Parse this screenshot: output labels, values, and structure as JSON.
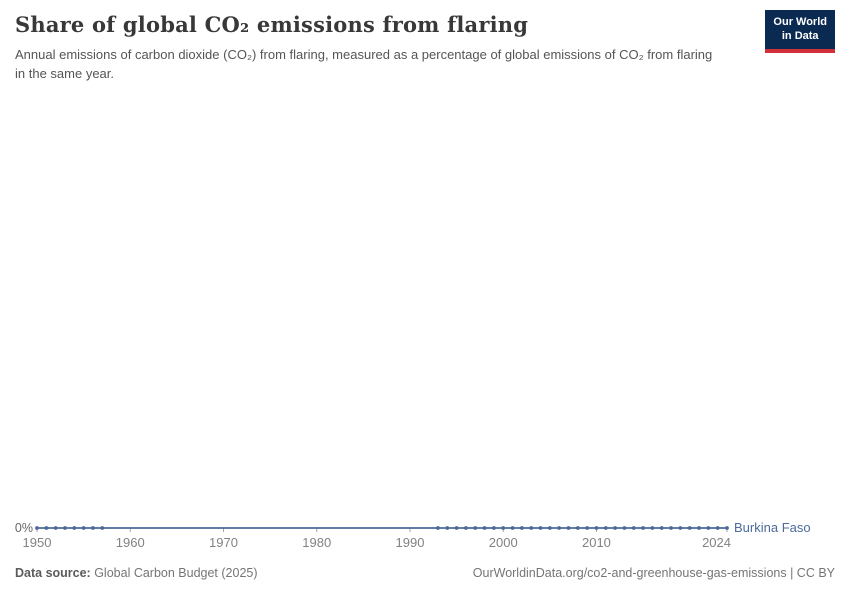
{
  "header": {
    "title": "Share of global CO₂ emissions from flaring",
    "subtitle": "Annual emissions of carbon dioxide (CO₂) from flaring, measured as a percentage of global emissions of CO₂ from flaring in the same year.",
    "logo": {
      "line1": "Our World",
      "line2": "in Data"
    }
  },
  "colors": {
    "logo_bg": "#0b2a51",
    "logo_accent": "#d1303a",
    "series_blue": "#4c6a9c",
    "axis_gray": "#a5a5a5",
    "tick_text_gray": "#828282"
  },
  "chart_data": {
    "type": "line",
    "title": "Share of global CO₂ emissions from flaring",
    "unit": "%",
    "x_domain": [
      1950,
      2024
    ],
    "x_ticks": [
      1950,
      1960,
      1970,
      1980,
      1990,
      2000,
      2010,
      2024
    ],
    "y_axis_label": "0%",
    "grid": false,
    "legend_position": "end-of-line",
    "series": [
      {
        "name": "Burkina Faso",
        "color": "#4c6a9c",
        "points": [
          [
            1950,
            0
          ],
          [
            1951,
            0
          ],
          [
            1952,
            0
          ],
          [
            1953,
            0
          ],
          [
            1954,
            0
          ],
          [
            1955,
            0
          ],
          [
            1956,
            0
          ],
          [
            1957,
            0
          ],
          [
            1993,
            0
          ],
          [
            1994,
            0
          ],
          [
            1995,
            0
          ],
          [
            1996,
            0
          ],
          [
            1997,
            0
          ],
          [
            1998,
            0
          ],
          [
            1999,
            0
          ],
          [
            2000,
            0
          ],
          [
            2001,
            0
          ],
          [
            2002,
            0
          ],
          [
            2003,
            0
          ],
          [
            2004,
            0
          ],
          [
            2005,
            0
          ],
          [
            2006,
            0
          ],
          [
            2007,
            0
          ],
          [
            2008,
            0
          ],
          [
            2009,
            0
          ],
          [
            2010,
            0
          ],
          [
            2011,
            0
          ],
          [
            2012,
            0
          ],
          [
            2013,
            0
          ],
          [
            2014,
            0
          ],
          [
            2015,
            0
          ],
          [
            2016,
            0
          ],
          [
            2017,
            0
          ],
          [
            2018,
            0
          ],
          [
            2019,
            0
          ],
          [
            2020,
            0
          ],
          [
            2021,
            0
          ],
          [
            2022,
            0
          ],
          [
            2023,
            0
          ],
          [
            2024,
            0
          ]
        ],
        "line_from": 1950,
        "line_to": 2024
      }
    ]
  },
  "footer": {
    "data_source_label": "Data source:",
    "data_source_value": " Global Carbon Budget (2025)",
    "attribution": "OurWorldinData.org/co2-and-greenhouse-gas-emissions | CC BY"
  }
}
